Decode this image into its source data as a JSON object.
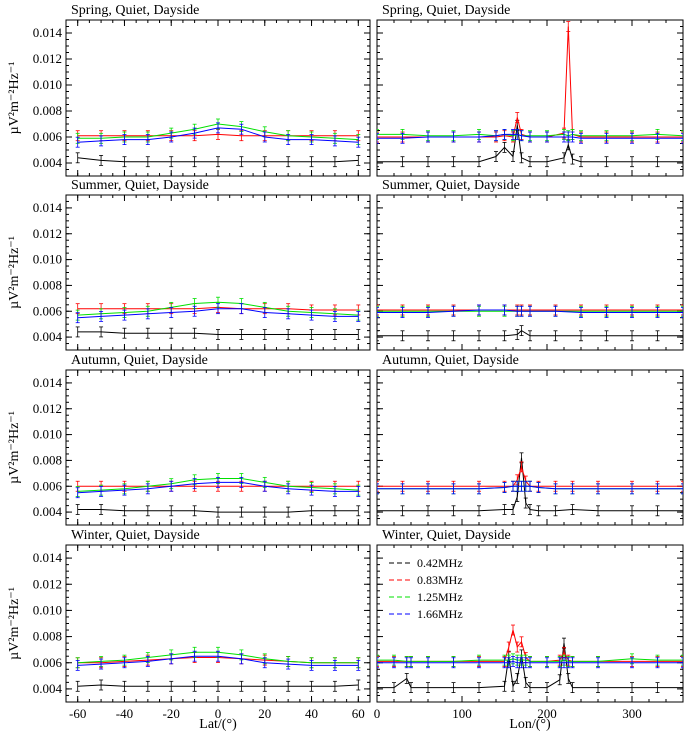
{
  "figure": {
    "left_xlabel": "Lat/(°)",
    "right_xlabel": "Lon/(°)",
    "ylabels": [
      "µV²m⁻²Hz⁻¹",
      "µV²m⁻²Hz⁻¹",
      "µV²m⁻²Hz⁻¹",
      "µV²m⁻²Hz⁻¹"
    ]
  },
  "colors": {
    "0.42MHz": "#000000",
    "0.83MHz": "#ff0000",
    "1.25MHz": "#00e000",
    "1.66MHz": "#0000ff"
  },
  "chart_data": [
    {
      "type": "line",
      "title": "Spring, Quiet, Dayside",
      "xlabel": "",
      "ylabel": "µV²m⁻²Hz⁻¹",
      "xlim": [
        -65,
        65
      ],
      "ylim": [
        0.003,
        0.015
      ],
      "xticks": [
        "-60",
        "-40",
        "-20",
        "0",
        "20",
        "40",
        "60"
      ],
      "yticks": [
        "0.004",
        "0.006",
        "0.008",
        "0.010",
        "0.012",
        "0.014"
      ],
      "x": [
        -60,
        -50,
        -40,
        -30,
        -20,
        -10,
        0,
        10,
        20,
        30,
        40,
        50,
        60
      ],
      "series": [
        {
          "name": "0.42MHz",
          "values": [
            0.0044,
            0.0042,
            0.0041,
            0.0041,
            0.0041,
            0.0041,
            0.0041,
            0.0041,
            0.0041,
            0.0041,
            0.0041,
            0.0041,
            0.0042
          ]
        },
        {
          "name": "0.83MHz",
          "values": [
            0.0061,
            0.0061,
            0.0061,
            0.0061,
            0.0061,
            0.0061,
            0.0062,
            0.0061,
            0.0061,
            0.0061,
            0.0061,
            0.0061,
            0.0061
          ]
        },
        {
          "name": "1.25MHz",
          "values": [
            0.0059,
            0.0059,
            0.006,
            0.006,
            0.0063,
            0.0066,
            0.007,
            0.0068,
            0.0064,
            0.0061,
            0.006,
            0.0059,
            0.0058
          ]
        },
        {
          "name": "1.66MHz",
          "values": [
            0.0056,
            0.0057,
            0.0058,
            0.0058,
            0.006,
            0.0063,
            0.0067,
            0.0066,
            0.006,
            0.0058,
            0.0058,
            0.0057,
            0.0056
          ]
        }
      ]
    },
    {
      "type": "line",
      "title": "Spring, Quiet, Dayside",
      "xlabel": "",
      "ylabel": "",
      "xlim": [
        0,
        360
      ],
      "ylim": [
        0.003,
        0.015
      ],
      "xticks": [
        "0",
        "100",
        "200",
        "300"
      ],
      "yticks": [],
      "x": [
        0,
        30,
        60,
        90,
        120,
        140,
        150,
        160,
        165,
        170,
        180,
        200,
        220,
        225,
        230,
        240,
        270,
        300,
        330,
        360
      ],
      "series": [
        {
          "name": "0.42MHz",
          "values": [
            0.0041,
            0.0041,
            0.0041,
            0.0041,
            0.0041,
            0.0045,
            0.0052,
            0.0045,
            0.0069,
            0.0044,
            0.0041,
            0.0041,
            0.0044,
            0.0054,
            0.0043,
            0.0041,
            0.0041,
            0.0041,
            0.0041,
            0.0041
          ]
        },
        {
          "name": "0.83MHz",
          "values": [
            0.006,
            0.006,
            0.006,
            0.006,
            0.006,
            0.006,
            0.0061,
            0.006,
            0.0075,
            0.0062,
            0.006,
            0.006,
            0.0063,
            0.0145,
            0.0062,
            0.006,
            0.006,
            0.006,
            0.006,
            0.006
          ]
        },
        {
          "name": "1.25MHz",
          "values": [
            0.0062,
            0.0062,
            0.0061,
            0.0061,
            0.0062,
            0.0061,
            0.0062,
            0.0061,
            0.0062,
            0.0061,
            0.0061,
            0.0061,
            0.0062,
            0.0061,
            0.0062,
            0.0061,
            0.0061,
            0.0061,
            0.0062,
            0.0061
          ]
        },
        {
          "name": "1.66MHz",
          "values": [
            0.0059,
            0.0059,
            0.006,
            0.006,
            0.006,
            0.0061,
            0.0062,
            0.0062,
            0.0062,
            0.0061,
            0.006,
            0.006,
            0.006,
            0.006,
            0.006,
            0.0059,
            0.0059,
            0.0059,
            0.0059,
            0.0059
          ]
        }
      ]
    },
    {
      "type": "line",
      "title": "Summer, Quiet, Dayside",
      "xlabel": "",
      "ylabel": "µV²m⁻²Hz⁻¹",
      "xlim": [
        -65,
        65
      ],
      "ylim": [
        0.003,
        0.015
      ],
      "xticks": [
        "-60",
        "-40",
        "-20",
        "0",
        "20",
        "40",
        "60"
      ],
      "yticks": [
        "0.004",
        "0.006",
        "0.008",
        "0.010",
        "0.012",
        "0.014"
      ],
      "x": [
        -60,
        -50,
        -40,
        -30,
        -20,
        -10,
        0,
        10,
        20,
        30,
        40,
        50,
        60
      ],
      "series": [
        {
          "name": "0.42MHz",
          "values": [
            0.0044,
            0.0044,
            0.0043,
            0.0043,
            0.0043,
            0.0043,
            0.0042,
            0.0042,
            0.0042,
            0.0042,
            0.0042,
            0.0042,
            0.0042
          ]
        },
        {
          "name": "0.83MHz",
          "values": [
            0.0062,
            0.0062,
            0.0062,
            0.0062,
            0.0062,
            0.0062,
            0.0063,
            0.0062,
            0.0062,
            0.0062,
            0.0061,
            0.0061,
            0.0061
          ]
        },
        {
          "name": "1.25MHz",
          "values": [
            0.0057,
            0.0058,
            0.0059,
            0.006,
            0.0063,
            0.0066,
            0.0067,
            0.0066,
            0.0063,
            0.006,
            0.0059,
            0.0058,
            0.0057
          ]
        },
        {
          "name": "1.66MHz",
          "values": [
            0.0055,
            0.0056,
            0.0057,
            0.0058,
            0.0059,
            0.006,
            0.0062,
            0.0062,
            0.0059,
            0.0058,
            0.0057,
            0.0056,
            0.0056
          ]
        }
      ]
    },
    {
      "type": "line",
      "title": "Summer, Quiet, Dayside",
      "xlabel": "",
      "ylabel": "",
      "xlim": [
        0,
        360
      ],
      "ylim": [
        0.003,
        0.015
      ],
      "xticks": [
        "0",
        "100",
        "200",
        "300"
      ],
      "yticks": [],
      "x": [
        0,
        30,
        60,
        90,
        120,
        150,
        165,
        170,
        180,
        210,
        240,
        270,
        300,
        330,
        360
      ],
      "series": [
        {
          "name": "0.42MHz",
          "values": [
            0.0041,
            0.0041,
            0.0041,
            0.0041,
            0.0041,
            0.0041,
            0.0042,
            0.0045,
            0.0041,
            0.0041,
            0.0041,
            0.0041,
            0.0041,
            0.0041,
            0.0041
          ]
        },
        {
          "name": "0.83MHz",
          "values": [
            0.0061,
            0.0061,
            0.0061,
            0.0061,
            0.0061,
            0.0061,
            0.0061,
            0.0061,
            0.0061,
            0.0061,
            0.0061,
            0.0061,
            0.0061,
            0.0061,
            0.0061
          ]
        },
        {
          "name": "1.25MHz",
          "values": [
            0.006,
            0.006,
            0.006,
            0.006,
            0.006,
            0.006,
            0.006,
            0.006,
            0.006,
            0.006,
            0.006,
            0.006,
            0.006,
            0.006,
            0.006
          ]
        },
        {
          "name": "1.66MHz",
          "values": [
            0.0059,
            0.0059,
            0.0059,
            0.006,
            0.0061,
            0.0061,
            0.006,
            0.006,
            0.006,
            0.006,
            0.0059,
            0.0059,
            0.0059,
            0.0059,
            0.0059
          ]
        }
      ]
    },
    {
      "type": "line",
      "title": "Autumn, Quiet, Dayside",
      "xlabel": "",
      "ylabel": "µV²m⁻²Hz⁻¹",
      "xlim": [
        -65,
        65
      ],
      "ylim": [
        0.003,
        0.015
      ],
      "xticks": [
        "-60",
        "-40",
        "-20",
        "0",
        "20",
        "40",
        "60"
      ],
      "yticks": [
        "0.004",
        "0.006",
        "0.008",
        "0.010",
        "0.012",
        "0.014"
      ],
      "x": [
        -60,
        -50,
        -40,
        -30,
        -20,
        -10,
        0,
        10,
        20,
        30,
        40,
        50,
        60
      ],
      "series": [
        {
          "name": "0.42MHz",
          "values": [
            0.0042,
            0.0042,
            0.0041,
            0.0041,
            0.0041,
            0.0041,
            0.004,
            0.004,
            0.004,
            0.004,
            0.0041,
            0.0041,
            0.0041
          ]
        },
        {
          "name": "0.83MHz",
          "values": [
            0.006,
            0.006,
            0.006,
            0.006,
            0.006,
            0.006,
            0.006,
            0.006,
            0.006,
            0.006,
            0.006,
            0.006,
            0.006
          ]
        },
        {
          "name": "1.25MHz",
          "values": [
            0.0056,
            0.0057,
            0.0058,
            0.006,
            0.0062,
            0.0065,
            0.0066,
            0.0066,
            0.0063,
            0.006,
            0.0059,
            0.0058,
            0.0057
          ]
        },
        {
          "name": "1.66MHz",
          "values": [
            0.0055,
            0.0056,
            0.0057,
            0.0058,
            0.006,
            0.0062,
            0.0063,
            0.0063,
            0.006,
            0.0058,
            0.0057,
            0.0056,
            0.0056
          ]
        }
      ]
    },
    {
      "type": "line",
      "title": "Autumn, Quiet, Dayside",
      "xlabel": "",
      "ylabel": "",
      "xlim": [
        0,
        360
      ],
      "ylim": [
        0.003,
        0.015
      ],
      "xticks": [
        "0",
        "100",
        "200",
        "300"
      ],
      "yticks": [],
      "x": [
        0,
        30,
        60,
        90,
        120,
        150,
        160,
        165,
        170,
        175,
        180,
        190,
        210,
        230,
        260,
        300,
        330,
        360
      ],
      "series": [
        {
          "name": "0.42MHz",
          "values": [
            0.0041,
            0.0041,
            0.0041,
            0.0041,
            0.0041,
            0.0042,
            0.0042,
            0.0052,
            0.0082,
            0.0047,
            0.0042,
            0.0041,
            0.0041,
            0.0042,
            0.0041,
            0.0041,
            0.0041,
            0.0041
          ]
        },
        {
          "name": "0.83MHz",
          "values": [
            0.006,
            0.006,
            0.006,
            0.006,
            0.006,
            0.006,
            0.006,
            0.0065,
            0.0075,
            0.0064,
            0.006,
            0.006,
            0.006,
            0.006,
            0.006,
            0.006,
            0.006,
            0.006
          ]
        },
        {
          "name": "1.25MHz",
          "values": [
            0.0058,
            0.0058,
            0.0058,
            0.0058,
            0.0058,
            0.0059,
            0.006,
            0.006,
            0.006,
            0.006,
            0.006,
            0.0059,
            0.0058,
            0.0058,
            0.0058,
            0.0058,
            0.0058,
            0.0058
          ]
        },
        {
          "name": "1.66MHz",
          "values": [
            0.0058,
            0.0058,
            0.0058,
            0.0058,
            0.0058,
            0.0059,
            0.006,
            0.006,
            0.006,
            0.006,
            0.006,
            0.0059,
            0.0058,
            0.0058,
            0.0058,
            0.0058,
            0.0058,
            0.0058
          ]
        }
      ]
    },
    {
      "type": "line",
      "title": "Winter, Quiet, Dayside",
      "xlabel": "Lat/(°)",
      "ylabel": "µV²m⁻²Hz⁻¹",
      "xlim": [
        -65,
        65
      ],
      "ylim": [
        0.003,
        0.015
      ],
      "xticks": [
        "-60",
        "-40",
        "-20",
        "0",
        "20",
        "40",
        "60"
      ],
      "yticks": [
        "0.004",
        "0.006",
        "0.008",
        "0.010",
        "0.012",
        "0.014"
      ],
      "x": [
        -60,
        -50,
        -40,
        -30,
        -20,
        -10,
        0,
        10,
        20,
        30,
        40,
        50,
        60
      ],
      "series": [
        {
          "name": "0.42MHz",
          "values": [
            0.0042,
            0.0043,
            0.0042,
            0.0042,
            0.0042,
            0.0042,
            0.0042,
            0.0042,
            0.0042,
            0.0042,
            0.0042,
            0.0042,
            0.0043
          ]
        },
        {
          "name": "0.83MHz",
          "values": [
            0.006,
            0.006,
            0.0061,
            0.0062,
            0.0063,
            0.0064,
            0.0064,
            0.0063,
            0.0062,
            0.0061,
            0.006,
            0.006,
            0.006
          ]
        },
        {
          "name": "1.25MHz",
          "values": [
            0.006,
            0.0061,
            0.0062,
            0.0064,
            0.0066,
            0.0068,
            0.0068,
            0.0066,
            0.0063,
            0.0061,
            0.006,
            0.006,
            0.006
          ]
        },
        {
          "name": "1.66MHz",
          "values": [
            0.0058,
            0.0059,
            0.006,
            0.0061,
            0.0063,
            0.0065,
            0.0065,
            0.0063,
            0.006,
            0.0059,
            0.0058,
            0.0058,
            0.0058
          ]
        }
      ]
    },
    {
      "type": "line",
      "title": "Winter, Quiet, Dayside",
      "xlabel": "Lon/(°)",
      "ylabel": "",
      "xlim": [
        0,
        360
      ],
      "ylim": [
        0.003,
        0.015
      ],
      "xticks": [
        "0",
        "100",
        "200",
        "300"
      ],
      "yticks": [],
      "legend": {
        "position": "top-left",
        "entries": [
          "0.42MHz",
          "0.83MHz",
          "1.25MHz",
          "1.66MHz"
        ]
      },
      "x": [
        0,
        20,
        35,
        40,
        60,
        90,
        120,
        150,
        155,
        160,
        165,
        170,
        175,
        180,
        200,
        215,
        220,
        225,
        230,
        260,
        300,
        330,
        360
      ],
      "series": [
        {
          "name": "0.42MHz",
          "values": [
            0.0041,
            0.0041,
            0.0048,
            0.0041,
            0.0041,
            0.0041,
            0.0041,
            0.0042,
            0.0065,
            0.0042,
            0.0048,
            0.0066,
            0.0045,
            0.0041,
            0.0041,
            0.0047,
            0.0075,
            0.0048,
            0.0041,
            0.0041,
            0.0041,
            0.0041,
            0.0041
          ]
        },
        {
          "name": "0.83MHz",
          "values": [
            0.0061,
            0.0061,
            0.0061,
            0.0061,
            0.0061,
            0.0061,
            0.0061,
            0.0061,
            0.0072,
            0.0085,
            0.0072,
            0.0076,
            0.0064,
            0.0061,
            0.0061,
            0.0062,
            0.0068,
            0.0062,
            0.0061,
            0.0061,
            0.0061,
            0.0061,
            0.0061
          ]
        },
        {
          "name": "1.25MHz",
          "values": [
            0.0062,
            0.0062,
            0.0061,
            0.0061,
            0.0061,
            0.0061,
            0.0062,
            0.0062,
            0.0062,
            0.0063,
            0.0062,
            0.0062,
            0.0062,
            0.0061,
            0.0061,
            0.0061,
            0.0062,
            0.0061,
            0.0061,
            0.0061,
            0.0063,
            0.0062,
            0.0062
          ]
        },
        {
          "name": "1.66MHz",
          "values": [
            0.006,
            0.006,
            0.006,
            0.006,
            0.006,
            0.006,
            0.006,
            0.006,
            0.006,
            0.0061,
            0.006,
            0.006,
            0.006,
            0.006,
            0.006,
            0.006,
            0.006,
            0.006,
            0.006,
            0.006,
            0.006,
            0.006,
            0.006
          ]
        }
      ]
    }
  ]
}
